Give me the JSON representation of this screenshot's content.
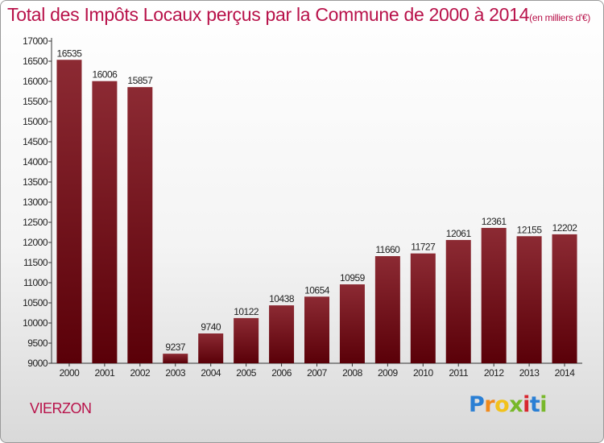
{
  "title": "Total des Impôts Locaux perçus par la Commune de 2000 à 2014",
  "unit": "(en milliers d'€)",
  "commune": "VIERZON",
  "brand": {
    "letters": [
      "P",
      "r",
      "o",
      "x",
      "i",
      "t",
      "i"
    ],
    "colors": [
      "#2a7fd4",
      "#f08a1c",
      "#f2c21b",
      "#78b82a",
      "#d8262e",
      "#2a7fd4",
      "#78b82a"
    ]
  },
  "colors": {
    "bar_top": "#8c2a33",
    "bar_bottom": "#5a0008",
    "title": "#b8124a"
  },
  "chart_data": {
    "type": "bar",
    "categories": [
      "2000",
      "2001",
      "2002",
      "2003",
      "2004",
      "2005",
      "2006",
      "2007",
      "2008",
      "2009",
      "2010",
      "2011",
      "2012",
      "2013",
      "2014"
    ],
    "values": [
      16535,
      16006,
      15857,
      9237,
      9740,
      10122,
      10438,
      10654,
      10959,
      11660,
      11727,
      12061,
      12361,
      12155,
      12202
    ],
    "ylim": [
      9000,
      17000
    ],
    "yticks": [
      9000,
      9500,
      10000,
      10500,
      11000,
      11500,
      12000,
      12500,
      13000,
      13500,
      14000,
      14500,
      15000,
      15500,
      16000,
      16500,
      17000
    ],
    "grid": false,
    "legend": "none"
  }
}
